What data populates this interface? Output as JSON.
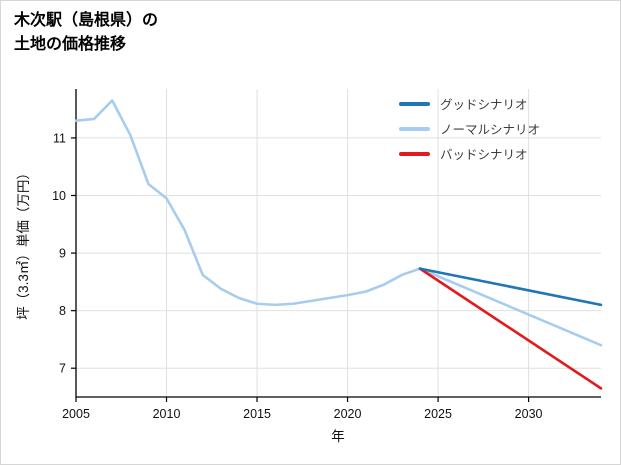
{
  "page": {
    "title_line1": "木次駅（島根県）の",
    "title_line2": "土地の価格推移"
  },
  "chart_data": {
    "type": "line",
    "title": "木次駅（島根県）の土地の価格推移",
    "xlabel": "年",
    "ylabel": "坪（3.3㎡）単価（万円）",
    "xlim": [
      2005,
      2034
    ],
    "ylim": [
      6.5,
      11.85
    ],
    "x_ticks": [
      2005,
      2010,
      2015,
      2020,
      2025,
      2030
    ],
    "y_ticks": [
      7,
      8,
      9,
      10,
      11
    ],
    "grid": true,
    "legend_position": "top-right",
    "colors": {
      "good": "#1f77b4",
      "normal": "#a6cdf0",
      "bad": "#e31a1c",
      "grid": "#e0e0e0",
      "axis": "#000000",
      "tick_label": "#111111"
    },
    "series": [
      {
        "id": "historical",
        "color": "#a6cdf0",
        "in_legend": false,
        "x": [
          2005,
          2006,
          2007,
          2008,
          2009,
          2010,
          2011,
          2012,
          2013,
          2014,
          2015,
          2016,
          2017,
          2018,
          2019,
          2020,
          2021,
          2022,
          2023,
          2024
        ],
        "values": [
          11.3,
          11.33,
          11.65,
          11.05,
          10.2,
          9.95,
          9.4,
          8.62,
          8.38,
          8.22,
          8.12,
          8.1,
          8.12,
          8.17,
          8.22,
          8.27,
          8.33,
          8.45,
          8.62,
          8.73
        ]
      },
      {
        "id": "normal",
        "name": "ノーマルシナリオ",
        "color": "#a6cdf0",
        "in_legend": true,
        "x": [
          2024,
          2034
        ],
        "values": [
          8.73,
          7.4
        ]
      },
      {
        "id": "bad",
        "name": "バッドシナリオ",
        "color": "#e31a1c",
        "in_legend": true,
        "x": [
          2024,
          2034
        ],
        "values": [
          8.73,
          6.65
        ]
      },
      {
        "id": "good",
        "name": "グッドシナリオ",
        "color": "#1f77b4",
        "in_legend": true,
        "x": [
          2024,
          2034
        ],
        "values": [
          8.73,
          8.1
        ]
      }
    ]
  }
}
